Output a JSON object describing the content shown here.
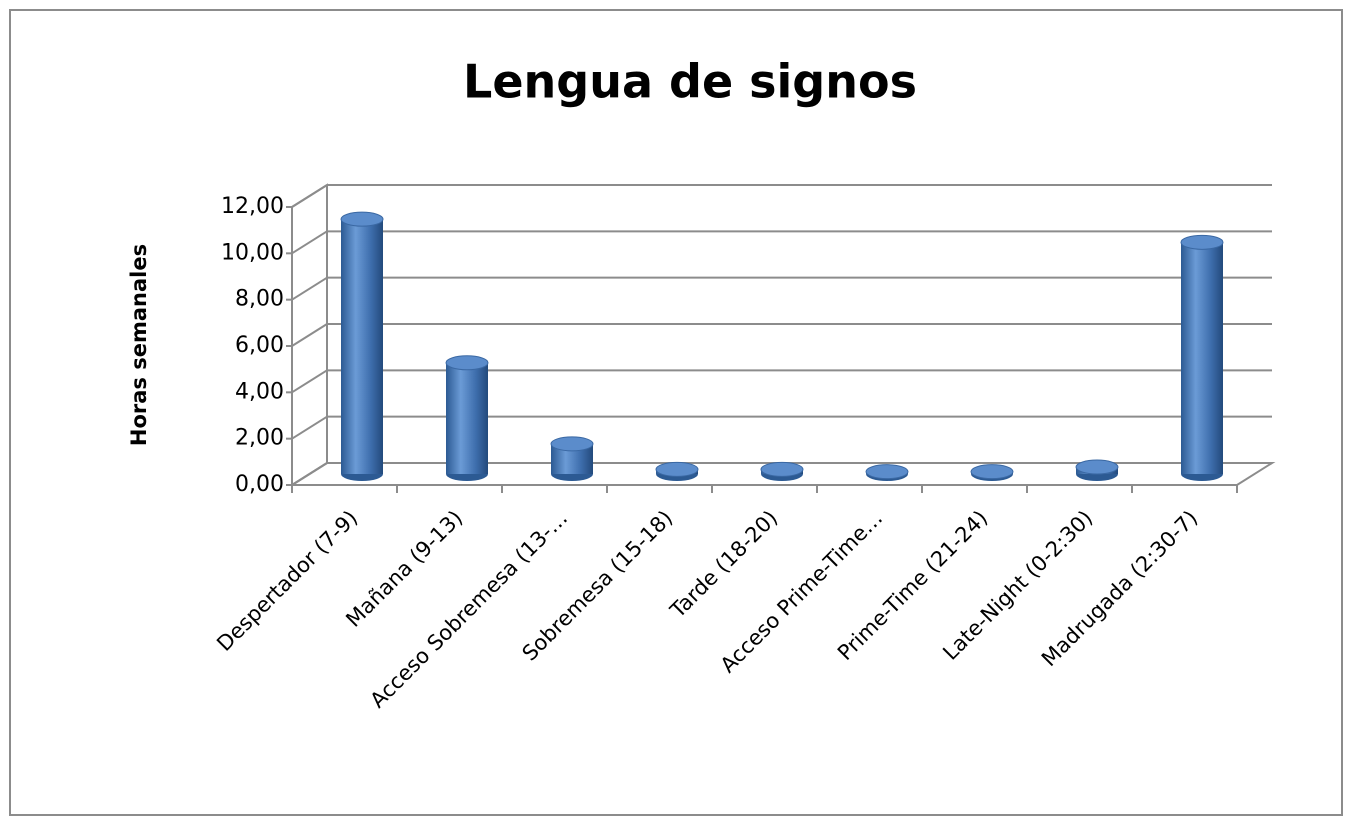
{
  "chart_data": {
    "type": "bar3d",
    "title": "Lengua de signos",
    "y_label": "Horas semanales",
    "categories": [
      "Despertador (7-9)",
      "Mañana (9-13)",
      "Acceso Sobremesa (13-…",
      "Sobremesa (15-18)",
      "Tarde (18-20)",
      "Acceso Prime-Time…",
      "Prime-Time (21-24)",
      "Late-Night (0-2:30)",
      "Madrugada (2:30-7)"
    ],
    "values": [
      11,
      4.8,
      1.3,
      0.2,
      0.2,
      0.1,
      0.1,
      0.3,
      10
    ],
    "color": "#4f81bd",
    "ylim": [
      0,
      12
    ],
    "yticks": [
      {
        "value": 0,
        "label": "0,00"
      },
      {
        "value": 2,
        "label": "2,00"
      },
      {
        "value": 4,
        "label": "4,00"
      },
      {
        "value": 6,
        "label": "6,00"
      },
      {
        "value": 8,
        "label": "8,00"
      },
      {
        "value": 10,
        "label": "10,00"
      },
      {
        "value": 12,
        "label": "12,00"
      }
    ],
    "grid": true
  }
}
